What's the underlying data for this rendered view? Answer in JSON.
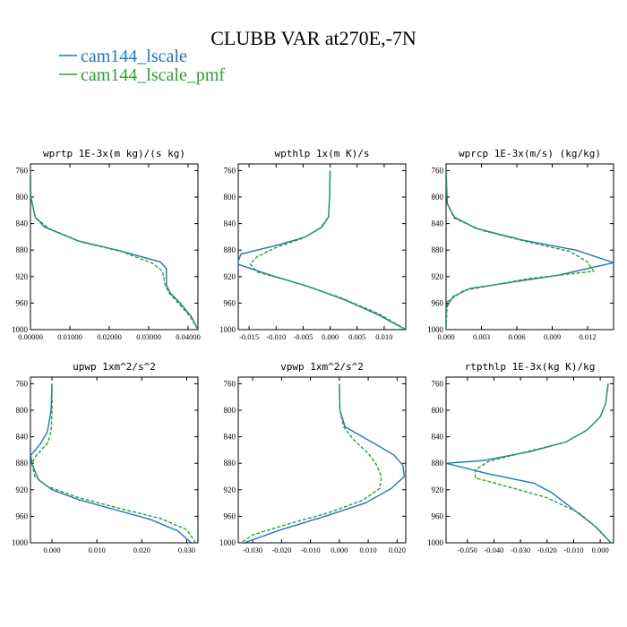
{
  "figure": {
    "title": "CLUBB VAR at270E,-7N",
    "legend": [
      {
        "name": "cam144_lscale",
        "color": "#1f77b4"
      },
      {
        "name": "cam144_lscale_pmf",
        "color": "#2ca02c"
      }
    ]
  },
  "chart_data": [
    {
      "type": "line",
      "title": "wprtp  1E-3x(m kg)/(s kg)",
      "xlim": [
        0.0,
        0.0425
      ],
      "ylim": [
        1000,
        750
      ],
      "xticks": [
        0.0,
        0.01,
        0.02,
        0.03,
        0.04
      ],
      "xtick_labels": [
        "0.00000",
        "0.01000",
        "0.02000",
        "0.03000",
        "0.04000"
      ],
      "yticks": [
        760,
        800,
        840,
        880,
        920,
        960,
        1000
      ],
      "series": [
        {
          "name": "cam144_lscale",
          "color": "#1f77b4",
          "dashed": false,
          "x": [
            0.0,
            0.0001,
            0.0012,
            0.0035,
            0.012,
            0.022,
            0.033,
            0.0345,
            0.0345,
            0.0355,
            0.038,
            0.0408,
            0.0425
          ],
          "y": [
            760,
            800,
            830,
            845,
            866,
            880,
            898,
            908,
            933,
            945,
            960,
            980,
            1000
          ]
        },
        {
          "name": "cam144_lscale_pmf",
          "color": "#2ca02c",
          "dashed": true,
          "x": [
            0.0,
            0.0001,
            0.0012,
            0.0045,
            0.013,
            0.023,
            0.031,
            0.0335,
            0.0342,
            0.0352,
            0.0375,
            0.0405,
            0.0425
          ],
          "y": [
            760,
            800,
            830,
            847,
            868,
            882,
            900,
            912,
            933,
            945,
            960,
            980,
            1000
          ]
        }
      ]
    },
    {
      "type": "line",
      "title": "wpthlp  1x(m K)/s",
      "xlim": [
        -0.017,
        0.014
      ],
      "ylim": [
        1000,
        750
      ],
      "xticks": [
        -0.015,
        -0.01,
        -0.005,
        0.0,
        0.005,
        0.01
      ],
      "xtick_labels": [
        "-0.015",
        "-0.010",
        "-0.005",
        "0.000",
        "0.005",
        "0.010"
      ],
      "yticks": [
        760,
        800,
        840,
        880,
        920,
        960,
        1000
      ],
      "series": [
        {
          "name": "cam144_lscale",
          "color": "#1f77b4",
          "dashed": false,
          "x": [
            0.0,
            -0.0001,
            -0.0003,
            -0.0015,
            -0.0045,
            -0.0095,
            -0.0165,
            -0.0172,
            -0.011,
            -0.004,
            0.003,
            0.009,
            0.014
          ],
          "y": [
            760,
            800,
            830,
            845,
            860,
            872,
            886,
            901,
            918,
            935,
            956,
            978,
            1000
          ]
        },
        {
          "name": "cam144_lscale_pmf",
          "color": "#2ca02c",
          "dashed": true,
          "x": [
            0.0,
            -0.0001,
            -0.0003,
            -0.0018,
            -0.005,
            -0.01,
            -0.0135,
            -0.0148,
            -0.0135,
            -0.006,
            0.002,
            0.009,
            0.014
          ],
          "y": [
            760,
            800,
            830,
            847,
            862,
            876,
            890,
            901,
            913,
            930,
            952,
            976,
            1000
          ]
        }
      ]
    },
    {
      "type": "line",
      "title": "wprcp  1E-3x(m/s) (kg/kg)",
      "xlim": [
        0.0,
        0.0142
      ],
      "ylim": [
        1000,
        750
      ],
      "xticks": [
        0.0,
        0.003,
        0.006,
        0.009,
        0.012
      ],
      "xtick_labels": [
        "0.000",
        "0.003",
        "0.006",
        "0.009",
        "0.012"
      ],
      "yticks": [
        760,
        800,
        840,
        880,
        920,
        960,
        1000
      ],
      "series": [
        {
          "name": "cam144_lscale",
          "color": "#1f77b4",
          "dashed": false,
          "x": [
            0.0,
            0.0001,
            0.0007,
            0.0025,
            0.0065,
            0.011,
            0.0142,
            0.0095,
            0.002,
            0.0006,
            0.0,
            0.0
          ],
          "y": [
            760,
            810,
            830,
            847,
            865,
            880,
            899,
            918,
            938,
            950,
            968,
            1000
          ]
        },
        {
          "name": "cam144_lscale_pmf",
          "color": "#2ca02c",
          "dashed": true,
          "x": [
            0.0,
            0.0001,
            0.0007,
            0.003,
            0.007,
            0.0105,
            0.012,
            0.0125,
            0.007,
            0.0015,
            0.0001,
            0.0
          ],
          "y": [
            760,
            810,
            832,
            850,
            868,
            882,
            898,
            912,
            923,
            941,
            958,
            1000
          ]
        }
      ]
    },
    {
      "type": "line",
      "title": "upwp  1xm^2/s^2",
      "xlim": [
        -0.0048,
        0.0325
      ],
      "ylim": [
        1000,
        750
      ],
      "xticks": [
        0.0,
        0.01,
        0.02,
        0.03
      ],
      "xtick_labels": [
        "0.000",
        "0.010",
        "0.020",
        "0.030"
      ],
      "yticks": [
        760,
        800,
        840,
        880,
        920,
        960,
        1000
      ],
      "series": [
        {
          "name": "cam144_lscale",
          "color": "#1f77b4",
          "dashed": false,
          "x": [
            0.0,
            -0.0002,
            -0.001,
            -0.0025,
            -0.0047,
            -0.0045,
            -0.003,
            0.0,
            0.006,
            0.014,
            0.022,
            0.028,
            0.031
          ],
          "y": [
            760,
            800,
            832,
            850,
            868,
            880,
            905,
            920,
            935,
            950,
            965,
            982,
            1000
          ]
        },
        {
          "name": "cam144_lscale_pmf",
          "color": "#2ca02c",
          "dashed": true,
          "x": [
            0.0,
            0.0,
            -0.0002,
            -0.001,
            -0.0035,
            -0.0045,
            -0.0038,
            -0.001,
            0.006,
            0.015,
            0.024,
            0.03,
            0.032
          ],
          "y": [
            760,
            800,
            832,
            850,
            868,
            880,
            900,
            915,
            932,
            948,
            963,
            980,
            1000
          ]
        }
      ]
    },
    {
      "type": "line",
      "title": "vpwp  1xm^2/s^2",
      "xlim": [
        -0.035,
        0.023
      ],
      "ylim": [
        1000,
        750
      ],
      "xticks": [
        -0.03,
        -0.02,
        -0.01,
        0.0,
        0.01,
        0.02
      ],
      "xtick_labels": [
        "-0.030",
        "-0.020",
        "-0.010",
        "0.000",
        "0.010",
        "0.020"
      ],
      "yticks": [
        760,
        800,
        840,
        880,
        920,
        960,
        1000
      ],
      "series": [
        {
          "name": "cam144_lscale",
          "color": "#1f77b4",
          "dashed": false,
          "x": [
            0.0,
            0.0002,
            0.002,
            0.008,
            0.014,
            0.019,
            0.022,
            0.0225,
            0.018,
            0.009,
            -0.005,
            -0.02,
            -0.033
          ],
          "y": [
            760,
            800,
            825,
            840,
            855,
            868,
            883,
            900,
            918,
            940,
            960,
            980,
            1000
          ]
        },
        {
          "name": "cam144_lscale_pmf",
          "color": "#2ca02c",
          "dashed": true,
          "x": [
            0.0,
            0.0002,
            0.0015,
            0.005,
            0.01,
            0.013,
            0.0145,
            0.014,
            0.008,
            -0.004,
            -0.018,
            -0.03,
            -0.034
          ],
          "y": [
            760,
            800,
            825,
            845,
            865,
            883,
            900,
            918,
            936,
            955,
            972,
            988,
            1000
          ]
        }
      ]
    },
    {
      "type": "line",
      "title": "rtpthlp  1E-3x(kg K)/kg",
      "xlim": [
        -0.058,
        0.005
      ],
      "ylim": [
        1000,
        750
      ],
      "xticks": [
        -0.05,
        -0.04,
        -0.03,
        -0.02,
        -0.01,
        0.0
      ],
      "xtick_labels": [
        "-0.050",
        "-0.040",
        "-0.030",
        "-0.020",
        "-0.010",
        "0.000"
      ],
      "yticks": [
        760,
        800,
        840,
        880,
        920,
        960,
        1000
      ],
      "series": [
        {
          "name": "cam144_lscale",
          "color": "#1f77b4",
          "dashed": false,
          "x": [
            0.003,
            0.002,
            0.0,
            -0.005,
            -0.013,
            -0.026,
            -0.044,
            -0.058,
            -0.042,
            -0.025,
            -0.018,
            -0.01,
            -0.002,
            0.004
          ],
          "y": [
            760,
            790,
            810,
            830,
            848,
            862,
            876,
            880,
            896,
            910,
            925,
            950,
            975,
            1000
          ]
        },
        {
          "name": "cam144_lscale_pmf",
          "color": "#2ca02c",
          "dashed": true,
          "x": [
            0.003,
            0.002,
            0.0,
            -0.005,
            -0.013,
            -0.028,
            -0.042,
            -0.047,
            -0.047,
            -0.035,
            -0.02,
            -0.008,
            -0.001,
            0.004
          ],
          "y": [
            760,
            790,
            810,
            830,
            848,
            863,
            877,
            890,
            902,
            915,
            932,
            955,
            978,
            1000
          ]
        }
      ]
    }
  ]
}
